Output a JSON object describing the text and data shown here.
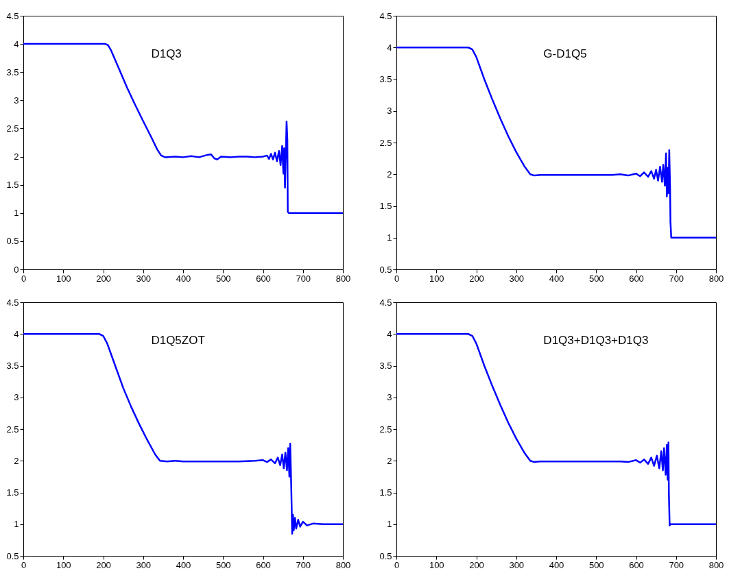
{
  "chart_data": [
    {
      "type": "line",
      "annotations": [
        "D1Q3"
      ],
      "xlim": [
        0,
        800
      ],
      "xticks": [
        0,
        100,
        200,
        300,
        400,
        500,
        600,
        700,
        800
      ],
      "ylim": [
        0,
        4.5
      ],
      "yticks": [
        0,
        0.5,
        1,
        1.5,
        2,
        2.5,
        3,
        3.5,
        4,
        4.5
      ],
      "grid": false,
      "series": [
        {
          "color": "#0000ff",
          "x": [
            0,
            205,
            212,
            220,
            240,
            260,
            280,
            300,
            320,
            335,
            345,
            355,
            380,
            400,
            420,
            440,
            460,
            470,
            478,
            485,
            495,
            520,
            540,
            560,
            580,
            600,
            610,
            615,
            620,
            625,
            630,
            635,
            640,
            644,
            648,
            651,
            653,
            655,
            657,
            659,
            661,
            662,
            665,
            800
          ],
          "values": [
            4,
            4,
            3.98,
            3.88,
            3.55,
            3.22,
            2.92,
            2.63,
            2.35,
            2.13,
            2.02,
            1.99,
            2,
            1.99,
            2.01,
            1.99,
            2.03,
            2.04,
            1.97,
            1.95,
            2,
            1.99,
            2,
            2,
            1.99,
            2,
            2.02,
            1.96,
            2.05,
            1.95,
            2.07,
            1.92,
            2.1,
            1.85,
            2.19,
            1.7,
            2.15,
            1.45,
            2,
            2.62,
            2.3,
            1.02,
            1,
            1
          ]
        }
      ]
    },
    {
      "type": "line",
      "annotations": [
        "G-D1Q5"
      ],
      "xlim": [
        0,
        800
      ],
      "xticks": [
        0,
        100,
        200,
        300,
        400,
        500,
        600,
        700,
        800
      ],
      "ylim": [
        0.5,
        4.5
      ],
      "yticks": [
        0.5,
        1,
        1.5,
        2,
        2.5,
        3,
        3.5,
        4,
        4.5
      ],
      "grid": false,
      "series": [
        {
          "color": "#0000ff",
          "x": [
            0,
            180,
            190,
            200,
            220,
            240,
            260,
            280,
            300,
            320,
            335,
            345,
            360,
            400,
            450,
            500,
            540,
            560,
            580,
            600,
            610,
            620,
            630,
            638,
            645,
            650,
            655,
            660,
            665,
            668,
            672,
            675,
            677,
            679,
            681,
            683,
            685,
            686,
            688,
            800
          ],
          "values": [
            4,
            4,
            3.97,
            3.85,
            3.5,
            3.18,
            2.88,
            2.6,
            2.35,
            2.13,
            2,
            1.98,
            1.99,
            1.99,
            1.99,
            1.99,
            1.99,
            2,
            1.98,
            2.01,
            1.97,
            2.03,
            1.96,
            2.05,
            1.93,
            2.07,
            1.9,
            2.12,
            1.88,
            2.15,
            1.82,
            2.33,
            1.65,
            2.1,
            1.7,
            2.38,
            1.8,
            1.25,
            1,
            1
          ]
        }
      ]
    },
    {
      "type": "line",
      "annotations": [
        "D1Q5ZOT"
      ],
      "xlim": [
        0,
        800
      ],
      "xticks": [
        0,
        100,
        200,
        300,
        400,
        500,
        600,
        700,
        800
      ],
      "ylim": [
        0.5,
        4.5
      ],
      "yticks": [
        0.5,
        1,
        1.5,
        2,
        2.5,
        3,
        3.5,
        4,
        4.5
      ],
      "grid": false,
      "series": [
        {
          "color": "#0000ff",
          "x": [
            0,
            190,
            200,
            210,
            230,
            250,
            270,
            290,
            310,
            330,
            342,
            360,
            380,
            400,
            450,
            500,
            540,
            580,
            600,
            610,
            620,
            630,
            637,
            643,
            648,
            652,
            656,
            660,
            663,
            666,
            668,
            670,
            671,
            673,
            675,
            677,
            680,
            683,
            688,
            693,
            700,
            710,
            725,
            750,
            800
          ],
          "values": [
            4,
            4,
            3.97,
            3.85,
            3.5,
            3.15,
            2.85,
            2.58,
            2.33,
            2.1,
            2,
            1.99,
            2,
            1.99,
            1.99,
            1.99,
            1.99,
            2,
            2.01,
            1.98,
            2.02,
            1.96,
            2.05,
            1.93,
            2.1,
            1.88,
            2.13,
            1.85,
            2.2,
            1.75,
            2.27,
            1.78,
            1.5,
            0.85,
            1.15,
            0.9,
            1.1,
            0.93,
            1.07,
            0.96,
            1.04,
            0.98,
            1.01,
            1,
            1
          ]
        }
      ]
    },
    {
      "type": "line",
      "annotations": [
        "D1Q3+D1Q3+D1Q3"
      ],
      "xlim": [
        0,
        800
      ],
      "xticks": [
        0,
        100,
        200,
        300,
        400,
        500,
        600,
        700,
        800
      ],
      "ylim": [
        0.5,
        4.5
      ],
      "yticks": [
        0.5,
        1,
        1.5,
        2,
        2.5,
        3,
        3.5,
        4,
        4.5
      ],
      "grid": false,
      "series": [
        {
          "color": "#0000ff",
          "x": [
            0,
            180,
            190,
            200,
            220,
            240,
            260,
            280,
            300,
            320,
            335,
            345,
            360,
            400,
            450,
            500,
            560,
            580,
            600,
            610,
            620,
            630,
            638,
            645,
            652,
            658,
            663,
            667,
            670,
            674,
            677,
            679,
            681,
            682,
            684,
            686,
            800
          ],
          "values": [
            4,
            4,
            3.97,
            3.85,
            3.5,
            3.18,
            2.88,
            2.6,
            2.35,
            2.13,
            2,
            1.98,
            1.99,
            1.99,
            1.99,
            1.99,
            1.99,
            1.98,
            2.01,
            1.97,
            2.02,
            1.95,
            2.05,
            1.92,
            2.08,
            1.88,
            2.15,
            1.85,
            2.2,
            1.78,
            2.25,
            1.7,
            2.29,
            1.5,
            0.98,
            1,
            1
          ]
        }
      ]
    }
  ]
}
